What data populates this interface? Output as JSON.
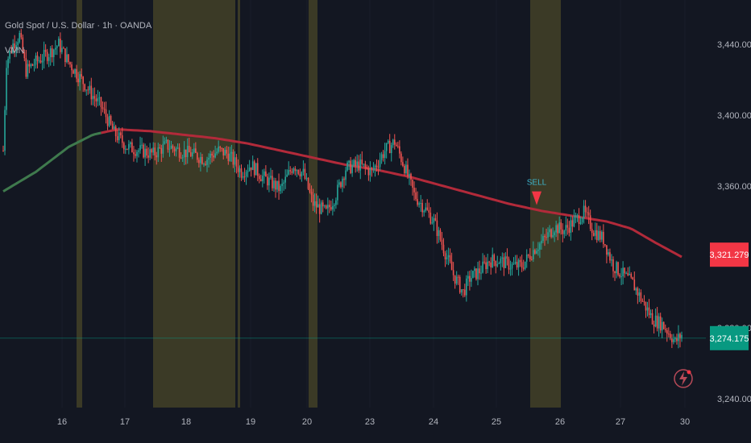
{
  "header": {
    "symbol_title": "Gold Spot / U.S. Dollar · 1h · OANDA",
    "indicator_label": "VMN"
  },
  "colors": {
    "background": "#131722",
    "up": "#26a69a",
    "down": "#ef5350",
    "session_shade": "#3b3a26",
    "ma_above": "#b22a3a",
    "ma_below": "#3f7a4d"
  },
  "chart_data": {
    "type": "candlestick",
    "x_tick_labels": [
      "16",
      "17",
      "18",
      "19",
      "20",
      "23",
      "24",
      "25",
      "26",
      "27",
      "30"
    ],
    "y_tick_labels": [
      "3,440.000",
      "3,400.000",
      "3,360.000",
      "3,280.000",
      "3,240.000"
    ],
    "ylim": [
      3235,
      3465
    ],
    "price_tags": [
      {
        "label": "3,321.279",
        "value": 3321.279,
        "color": "#f23645"
      },
      {
        "label": "3,274.175",
        "value": 3274.175,
        "color": "#089981"
      }
    ],
    "current_price_line": 3274.175,
    "shaded_sessions": [
      {
        "from": "16",
        "to": "16"
      },
      {
        "from": "18",
        "to": "19"
      },
      {
        "from": "20",
        "to": "20"
      },
      {
        "from": "25",
        "to": "26"
      }
    ],
    "signals": [
      {
        "label": "SELL",
        "date": "25",
        "price": 3347
      }
    ],
    "price_path": [
      [
        0,
        3380
      ],
      [
        2,
        3430
      ],
      [
        6,
        3440
      ],
      [
        10,
        3445
      ],
      [
        14,
        3425
      ],
      [
        20,
        3430
      ],
      [
        28,
        3435
      ],
      [
        34,
        3440
      ],
      [
        40,
        3430
      ],
      [
        48,
        3420
      ],
      [
        54,
        3412
      ],
      [
        60,
        3405
      ],
      [
        68,
        3390
      ],
      [
        76,
        3382
      ],
      [
        84,
        3380
      ],
      [
        92,
        3378
      ],
      [
        100,
        3383
      ],
      [
        108,
        3380
      ],
      [
        116,
        3378
      ],
      [
        124,
        3375
      ],
      [
        132,
        3380
      ],
      [
        138,
        3378
      ],
      [
        146,
        3368
      ],
      [
        152,
        3372
      ],
      [
        158,
        3366
      ],
      [
        164,
        3362
      ],
      [
        170,
        3358
      ],
      [
        178,
        3372
      ],
      [
        184,
        3367
      ],
      [
        190,
        3350
      ],
      [
        198,
        3345
      ],
      [
        204,
        3355
      ],
      [
        210,
        3370
      ],
      [
        218,
        3372
      ],
      [
        226,
        3368
      ],
      [
        234,
        3380
      ],
      [
        240,
        3385
      ],
      [
        246,
        3371
      ],
      [
        252,
        3355
      ],
      [
        258,
        3348
      ],
      [
        264,
        3340
      ],
      [
        270,
        3325
      ],
      [
        276,
        3310
      ],
      [
        282,
        3300
      ],
      [
        286,
        3308
      ],
      [
        292,
        3312
      ],
      [
        298,
        3318
      ],
      [
        304,
        3318
      ],
      [
        312,
        3315
      ],
      [
        318,
        3315
      ],
      [
        326,
        3325
      ],
      [
        332,
        3330
      ],
      [
        338,
        3337
      ],
      [
        344,
        3335
      ],
      [
        350,
        3340
      ],
      [
        356,
        3345
      ],
      [
        362,
        3335
      ],
      [
        368,
        3330
      ],
      [
        374,
        3315
      ],
      [
        380,
        3310
      ],
      [
        386,
        3305
      ],
      [
        392,
        3295
      ],
      [
        398,
        3285
      ],
      [
        404,
        3282
      ],
      [
        410,
        3275
      ],
      [
        412,
        3272
      ],
      [
        416,
        3276
      ]
    ],
    "ma_path": [
      [
        0,
        3357
      ],
      [
        20,
        3368
      ],
      [
        40,
        3382
      ],
      [
        55,
        3389
      ],
      [
        70,
        3392
      ],
      [
        90,
        3391
      ],
      [
        110,
        3389
      ],
      [
        130,
        3387
      ],
      [
        150,
        3384
      ],
      [
        170,
        3380
      ],
      [
        190,
        3376
      ],
      [
        210,
        3372
      ],
      [
        230,
        3369
      ],
      [
        250,
        3365
      ],
      [
        270,
        3360
      ],
      [
        290,
        3355
      ],
      [
        310,
        3350
      ],
      [
        330,
        3346
      ],
      [
        350,
        3343
      ],
      [
        370,
        3340
      ],
      [
        385,
        3336
      ],
      [
        400,
        3328
      ],
      [
        416,
        3320
      ]
    ],
    "ma_color_switch_at": 60
  }
}
